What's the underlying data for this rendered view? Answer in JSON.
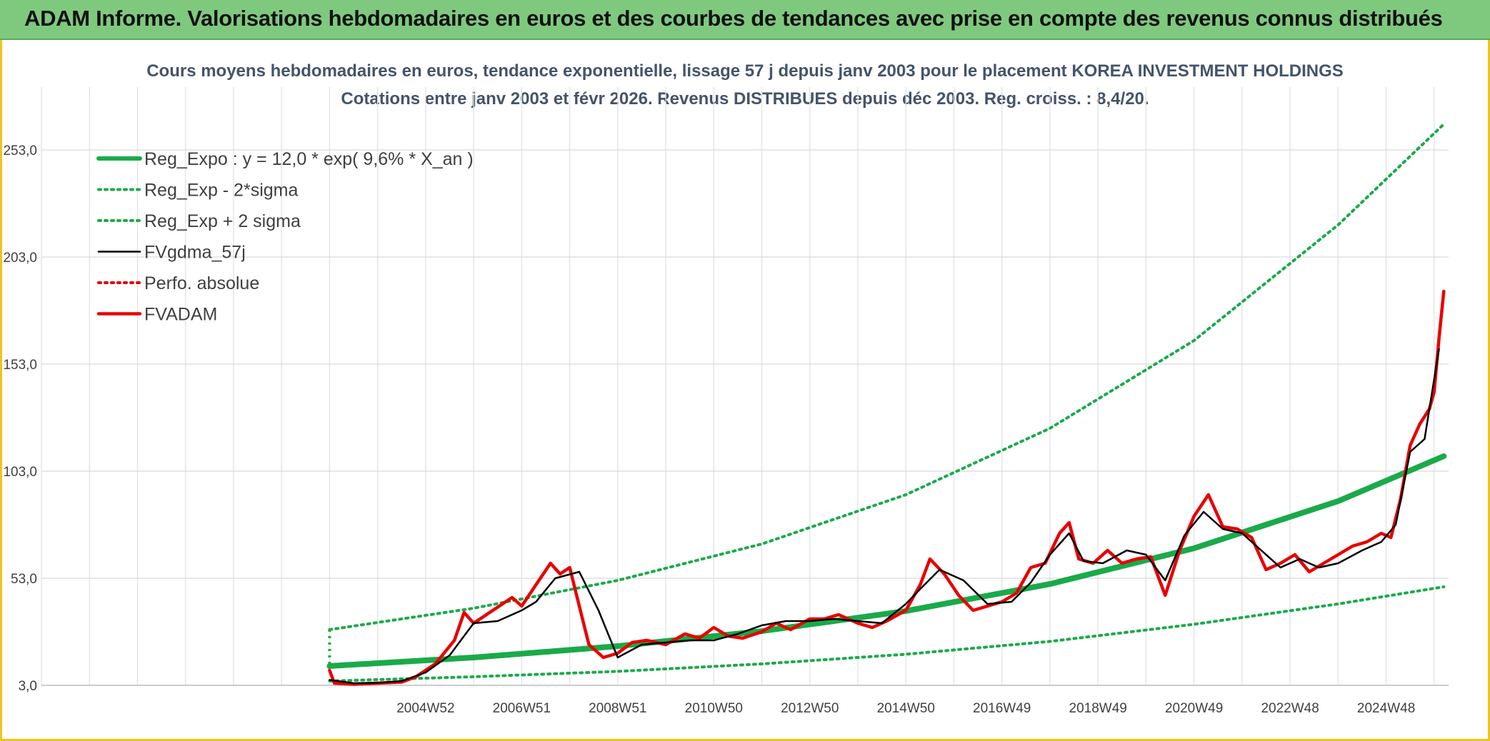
{
  "header": {
    "banner": "ADAM Informe. Valorisations hebdomadaires en euros et des courbes de tendances avec prise en compte des revenus connus distribués"
  },
  "chart_data": {
    "type": "line",
    "title": "Cours moyens hebdomadaires en euros, tendance exponentielle, lissage 57 j depuis janv 2003 pour le placement KOREA INVESTMENT HOLDINGS",
    "subtitle": "Cotations entre janv 2003 et févr 2026. Revenus DISTRIBUES depuis déc 2003. Reg. croiss. : 8,4/20.",
    "xlabel": "",
    "ylabel": "",
    "ylim": [
      3.0,
      269.0
    ],
    "xlim": [
      1997.0,
      2026.3
    ],
    "y_ticks": [
      "3,0",
      "53,0",
      "103,0",
      "153,0",
      "203,0",
      "253,0"
    ],
    "x_ticks": [
      {
        "x": 2005.0,
        "label": "2004W52"
      },
      {
        "x": 2007.0,
        "label": "2006W51"
      },
      {
        "x": 2009.0,
        "label": "2008W51"
      },
      {
        "x": 2011.0,
        "label": "2010W50"
      },
      {
        "x": 2013.0,
        "label": "2012W50"
      },
      {
        "x": 2015.0,
        "label": "2014W50"
      },
      {
        "x": 2017.0,
        "label": "2016W49"
      },
      {
        "x": 2019.0,
        "label": "2018W49"
      },
      {
        "x": 2021.0,
        "label": "2020W49"
      },
      {
        "x": 2023.0,
        "label": "2022W48"
      },
      {
        "x": 2025.0,
        "label": "2024W48"
      }
    ],
    "grid": true,
    "legend_position": "top-left",
    "series": [
      {
        "name": "Reg_Expo : y = 12,0 * exp( 9,6% *  X_an )",
        "style": "solid-thick",
        "color": "#1aaa4a",
        "x": [
          2003.0,
          2006.0,
          2009.0,
          2012.0,
          2015.0,
          2018.0,
          2021.0,
          2024.0,
          2026.2
        ],
        "values": [
          12.0,
          16.0,
          21.3,
          28.3,
          37.7,
          50.3,
          67.0,
          89.0,
          110.0
        ]
      },
      {
        "name": "Reg_Exp - 2*sigma",
        "style": "dotted",
        "color": "#1aaa4a",
        "x": [
          2003.0,
          2006.0,
          2009.0,
          2012.0,
          2015.0,
          2018.0,
          2021.0,
          2024.0,
          2026.2
        ],
        "values": [
          5.0,
          7.0,
          9.5,
          13.0,
          17.5,
          23.5,
          31.5,
          41.0,
          49.0
        ]
      },
      {
        "name": "Reg_Exp + 2 sigma",
        "style": "dotted",
        "color": "#1aaa4a",
        "x": [
          2003.0,
          2006.0,
          2009.0,
          2012.0,
          2015.0,
          2018.0,
          2021.0,
          2024.0,
          2026.2
        ],
        "values": [
          29.0,
          39.0,
          52.0,
          69.0,
          92.0,
          123.0,
          164.0,
          218.0,
          265.0
        ]
      },
      {
        "name": "FVgdma_57j",
        "style": "solid",
        "color": "#000000",
        "x": [
          2003.0,
          2003.5,
          2004.0,
          2004.5,
          2005.0,
          2005.5,
          2006.0,
          2006.5,
          2007.0,
          2007.3,
          2007.7,
          2008.2,
          2008.6,
          2009.0,
          2009.5,
          2010.0,
          2010.5,
          2011.0,
          2011.5,
          2012.0,
          2012.5,
          2013.0,
          2013.5,
          2014.0,
          2014.5,
          2015.0,
          2015.3,
          2015.7,
          2016.2,
          2016.7,
          2017.2,
          2017.6,
          2018.0,
          2018.4,
          2018.7,
          2019.1,
          2019.6,
          2020.0,
          2020.4,
          2020.8,
          2021.2,
          2021.6,
          2022.0,
          2022.4,
          2022.8,
          2023.2,
          2023.6,
          2024.0,
          2024.5,
          2024.9,
          2025.2,
          2025.5,
          2025.8,
          2026.1
        ],
        "values": [
          5.5,
          4.0,
          4.2,
          5.0,
          9.0,
          17.0,
          32.0,
          33.0,
          38.0,
          42.0,
          53.0,
          56.0,
          38.0,
          16.0,
          22.0,
          23.0,
          24.0,
          24.0,
          27.0,
          31.0,
          33.0,
          33.0,
          34.0,
          33.0,
          32.0,
          41.0,
          48.0,
          57.0,
          52.0,
          41.0,
          42.0,
          51.0,
          64.0,
          74.0,
          61.0,
          60.0,
          66.0,
          64.0,
          52.0,
          73.0,
          84.0,
          76.0,
          74.0,
          66.0,
          58.0,
          62.0,
          58.0,
          60.0,
          66.0,
          70.0,
          78.0,
          112.0,
          118.0,
          160.0
        ]
      },
      {
        "name": "Perfo. absolue",
        "style": "dotted",
        "color": "#e00000",
        "x": [],
        "values": []
      },
      {
        "name": "FVADAM",
        "style": "solid-thick",
        "color": "#e80000",
        "x": [
          2003.0,
          2003.1,
          2003.5,
          2004.0,
          2004.5,
          2004.8,
          2005.2,
          2005.6,
          2005.8,
          2006.0,
          2006.4,
          2006.8,
          2007.0,
          2007.3,
          2007.6,
          2007.8,
          2008.0,
          2008.2,
          2008.4,
          2008.7,
          2009.0,
          2009.3,
          2009.6,
          2010.0,
          2010.4,
          2010.7,
          2011.0,
          2011.3,
          2011.6,
          2012.0,
          2012.3,
          2012.6,
          2013.0,
          2013.3,
          2013.6,
          2014.0,
          2014.3,
          2014.6,
          2015.0,
          2015.3,
          2015.5,
          2015.8,
          2016.1,
          2016.4,
          2016.7,
          2017.0,
          2017.3,
          2017.6,
          2017.9,
          2018.2,
          2018.4,
          2018.6,
          2018.9,
          2019.2,
          2019.5,
          2019.8,
          2020.1,
          2020.4,
          2020.7,
          2021.0,
          2021.3,
          2021.6,
          2021.9,
          2022.2,
          2022.5,
          2022.8,
          2023.1,
          2023.4,
          2023.7,
          2024.0,
          2024.3,
          2024.6,
          2024.9,
          2025.1,
          2025.3,
          2025.5,
          2025.7,
          2025.9,
          2026.0,
          2026.1,
          2026.2
        ],
        "values": [
          10.0,
          4.0,
          3.5,
          4.0,
          4.5,
          7.0,
          13.0,
          24.0,
          37.0,
          32.0,
          38.0,
          44.0,
          40.0,
          50.0,
          60.0,
          55.0,
          58.0,
          40.0,
          22.0,
          16.0,
          18.0,
          23.0,
          24.0,
          22.0,
          27.0,
          25.0,
          30.0,
          26.0,
          25.0,
          28.0,
          32.0,
          29.0,
          34.0,
          34.0,
          36.0,
          32.0,
          30.0,
          33.0,
          38.0,
          50.0,
          62.0,
          55.0,
          45.0,
          38.0,
          40.0,
          42.0,
          46.0,
          58.0,
          60.0,
          74.0,
          79.0,
          62.0,
          60.0,
          66.0,
          60.0,
          62.0,
          63.0,
          45.0,
          66.0,
          82.0,
          92.0,
          77.0,
          76.0,
          72.0,
          57.0,
          60.0,
          64.0,
          56.0,
          60.0,
          64.0,
          68.0,
          70.0,
          74.0,
          72.0,
          90.0,
          115.0,
          125.0,
          132.0,
          140.0,
          165.0,
          187.0
        ]
      }
    ]
  }
}
